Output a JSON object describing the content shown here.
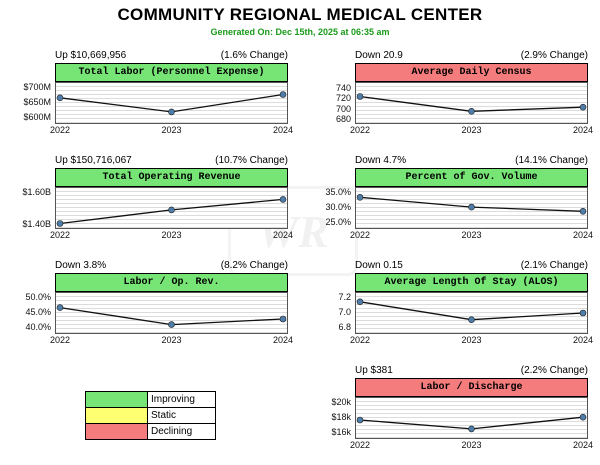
{
  "page": {
    "title": "COMMUNITY REGIONAL MEDICAL CENTER",
    "subtitle": "Generated On: Dec 15th, 2025 at 06:35 am"
  },
  "colors": {
    "improving": "#76e576",
    "static": "#ffff72",
    "declining": "#f47c7c",
    "line": "#111111",
    "point": "#4d7da8"
  },
  "legend": {
    "rows": [
      {
        "label": "Improving",
        "status": "improving"
      },
      {
        "label": "Static",
        "status": "static"
      },
      {
        "label": "Declining",
        "status": "declining"
      }
    ]
  },
  "watermark": {
    "text": "WR"
  },
  "chart_data": [
    {
      "type": "line",
      "title": "Total Labor (Personnel Expense)",
      "change": "Up $10,669,956",
      "pct": "(1.6% Change)",
      "status": "improving",
      "x": [
        "2022",
        "2023",
        "2024"
      ],
      "values": [
        667,
        621,
        677.7
      ],
      "unit": "$M",
      "y_ticks": [
        {
          "label": "$700M",
          "v": 700
        },
        {
          "label": "$650M",
          "v": 650
        },
        {
          "label": "$600M",
          "v": 600
        }
      ],
      "y_range": [
        585,
        715
      ]
    },
    {
      "type": "line",
      "title": "Average Daily Census",
      "change": "Down 20.9",
      "pct": "(2.9% Change)",
      "status": "declining",
      "x": [
        "2022",
        "2023",
        "2024"
      ],
      "values": [
        725.7,
        696.8,
        704.8
      ],
      "unit": "patients",
      "y_ticks": [
        {
          "label": "740",
          "v": 740
        },
        {
          "label": "720",
          "v": 720
        },
        {
          "label": "700",
          "v": 700
        },
        {
          "label": "680",
          "v": 680
        }
      ],
      "y_range": [
        674,
        752
      ]
    },
    {
      "type": "line",
      "title": "Total Operating Revenue",
      "change": "Up $150,716,067",
      "pct": "(10.7% Change)",
      "status": "improving",
      "x": [
        "2022",
        "2023",
        "2024"
      ],
      "values": [
        1.409,
        1.494,
        1.56
      ],
      "unit": "$B",
      "y_ticks": [
        {
          "label": "$1.60B",
          "v": 1.6
        },
        {
          "label": "$1.40B",
          "v": 1.4
        }
      ],
      "y_range": [
        1.381,
        1.631
      ]
    },
    {
      "type": "line",
      "title": "Percent of Gov. Volume",
      "change": "Down 4.7%",
      "pct": "(14.1% Change)",
      "status": "improving",
      "x": [
        "2022",
        "2023",
        "2024"
      ],
      "values": [
        33.6,
        30.3,
        28.9
      ],
      "unit": "%",
      "y_ticks": [
        {
          "label": "35.0%",
          "v": 35
        },
        {
          "label": "30.0%",
          "v": 30
        },
        {
          "label": "25.0%",
          "v": 25
        }
      ],
      "y_range": [
        23.3,
        36.7
      ]
    },
    {
      "type": "line",
      "title": "Labor / Op. Rev.",
      "change": "Down 3.8%",
      "pct": "(8.2% Change)",
      "status": "improving",
      "x": [
        "2022",
        "2023",
        "2024"
      ],
      "values": [
        46.8,
        41.1,
        43.0
      ],
      "unit": "%",
      "y_ticks": [
        {
          "label": "50.0%",
          "v": 50
        },
        {
          "label": "45.0%",
          "v": 45
        },
        {
          "label": "40.0%",
          "v": 40
        }
      ],
      "y_range": [
        38.3,
        51.7
      ]
    },
    {
      "type": "line",
      "title": "Average Length Of Stay (ALOS)",
      "change": "Down 0.15",
      "pct": "(2.1% Change)",
      "status": "improving",
      "x": [
        "2022",
        "2023",
        "2024"
      ],
      "values": [
        7.15,
        6.91,
        7.0
      ],
      "unit": "days",
      "y_ticks": [
        {
          "label": "7.2",
          "v": 7.2
        },
        {
          "label": "7.0",
          "v": 7.0
        },
        {
          "label": "6.8",
          "v": 6.8
        }
      ],
      "y_range": [
        6.733,
        7.267
      ]
    },
    {
      "type": "line",
      "title": "Labor / Discharge",
      "change": "Up $381",
      "pct": "(2.2% Change)",
      "status": "declining",
      "x": [
        "2022",
        "2023",
        "2024"
      ],
      "values": [
        17.73,
        16.55,
        18.11
      ],
      "unit": "$k",
      "y_ticks": [
        {
          "label": "$20k",
          "v": 20
        },
        {
          "label": "$18k",
          "v": 18
        },
        {
          "label": "$16k",
          "v": 16
        }
      ],
      "y_range": [
        15.33,
        20.67
      ]
    }
  ]
}
